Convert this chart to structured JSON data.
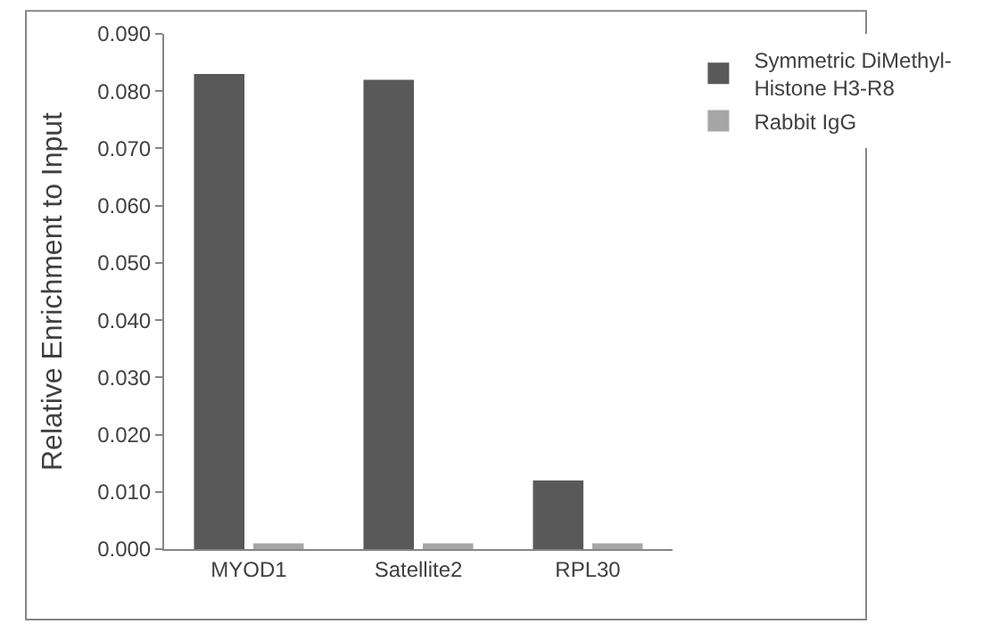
{
  "chart_data": {
    "type": "bar",
    "ylabel": "Relative Enrichment to Input",
    "categories": [
      "MYOD1",
      "Satellite2",
      "RPL30"
    ],
    "series": [
      {
        "name": "Symmetric DiMethyl-\nHistone H3-R8",
        "color": "#595959",
        "values": [
          0.083,
          0.082,
          0.012
        ]
      },
      {
        "name": "Rabbit IgG",
        "color": "#a6a6a6",
        "values": [
          0.001,
          0.001,
          0.001
        ]
      }
    ],
    "ylim": [
      0,
      0.09
    ],
    "yticks": [
      {
        "value": 0,
        "label": "0.000"
      },
      {
        "value": 0.01,
        "label": "0.010"
      },
      {
        "value": 0.02,
        "label": "0.020"
      },
      {
        "value": 0.03,
        "label": "0.030"
      },
      {
        "value": 0.04,
        "label": "0.040"
      },
      {
        "value": 0.05,
        "label": "0.050"
      },
      {
        "value": 0.06,
        "label": "0.060"
      },
      {
        "value": 0.07,
        "label": "0.070"
      },
      {
        "value": 0.08,
        "label": "0.080"
      },
      {
        "value": 0.09,
        "label": "0.090"
      }
    ],
    "legend": "right"
  }
}
